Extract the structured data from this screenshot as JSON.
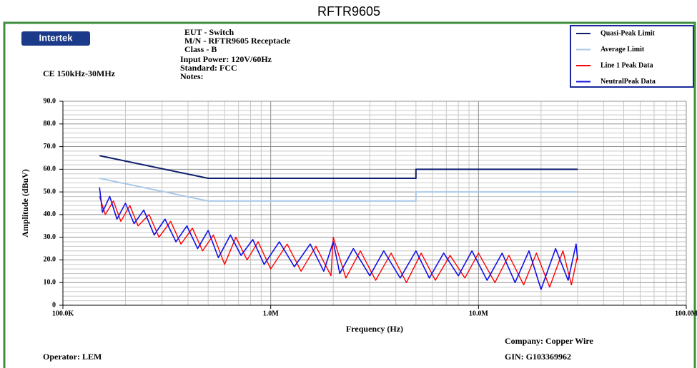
{
  "chart_data": {
    "type": "line",
    "title": "RFTR9605",
    "logo": "Intertek",
    "subtitle": "CE 150kHz-30MHz",
    "header_lines": [
      "EUT - Switch",
      "M/N - RFTR9605 Receptacle",
      "Class - B",
      "Input Power: 120V/60Hz",
      "Standard: FCC",
      "Notes:"
    ],
    "footer": {
      "company": "Company: Copper Wire",
      "gin": "GIN: G103369962",
      "operator": "Operator: LEM"
    },
    "xlabel": "Frequency (Hz)",
    "ylabel": "Amplitude (dBuV)",
    "xscale": "log",
    "grid": true,
    "legend": "top-right",
    "xlim": [
      100000,
      100000000
    ],
    "xticks": [
      {
        "value": 100000,
        "label": "100.0K"
      },
      {
        "value": 1000000,
        "label": "1.0M"
      },
      {
        "value": 10000000,
        "label": "10.0M"
      },
      {
        "value": 100000000,
        "label": "100.0M"
      }
    ],
    "ylim": [
      0,
      90
    ],
    "yticks": [
      0,
      {
        "value": 10,
        "label": "10.0"
      },
      {
        "value": 20,
        "label": "20.0"
      },
      {
        "value": 30,
        "label": "30.0"
      },
      {
        "value": 40,
        "label": "40.0"
      },
      {
        "value": 50,
        "label": "50.0"
      },
      {
        "value": 60,
        "label": "60.0"
      },
      {
        "value": 70,
        "label": "70.0"
      },
      {
        "value": 80,
        "label": "80.0"
      },
      {
        "value": 90,
        "label": "90.0"
      }
    ],
    "series": [
      {
        "name": "Line 1 Peak Data",
        "color": "#ff0000",
        "width": 1.4,
        "x": [
          150000,
          160000,
          175000,
          190000,
          210000,
          230000,
          260000,
          290000,
          330000,
          370000,
          420000,
          470000,
          530000,
          600000,
          680000,
          770000,
          870000,
          1000000,
          1200000,
          1400000,
          1650000,
          1950000,
          2000000,
          2300000,
          2700000,
          3200000,
          3800000,
          4500000,
          5300000,
          6200000,
          7300000,
          8600000,
          10000000,
          12000000,
          14000000,
          16500000,
          19000000,
          22000000,
          25500000,
          28000000,
          30000000
        ],
        "values": [
          48,
          40,
          46,
          37,
          44,
          35,
          40,
          30,
          37,
          27,
          34,
          24,
          31,
          18,
          30,
          20,
          28,
          16,
          27,
          15,
          26,
          13,
          30,
          12,
          24,
          11,
          23,
          10,
          23,
          11,
          22,
          12,
          23,
          10,
          22,
          9,
          23,
          8,
          24,
          9,
          22
        ]
      },
      {
        "name": "NeutralPeak Data",
        "color": "#1010e8",
        "width": 1.6,
        "x": [
          150000,
          155000,
          168000,
          182000,
          200000,
          220000,
          245000,
          275000,
          310000,
          350000,
          395000,
          445000,
          500000,
          560000,
          640000,
          720000,
          820000,
          930000,
          1100000,
          1300000,
          1550000,
          1800000,
          2000000,
          2150000,
          2500000,
          3000000,
          3500000,
          4200000,
          5000000,
          5800000,
          6800000,
          8000000,
          9300000,
          11000000,
          13000000,
          15000000,
          17500000,
          20000000,
          23500000,
          27000000,
          29500000,
          30000000
        ],
        "values": [
          52,
          41,
          48,
          38,
          45,
          36,
          42,
          31,
          38,
          28,
          35,
          25,
          33,
          21,
          31,
          22,
          29,
          18,
          28,
          17,
          27,
          15,
          28,
          14,
          25,
          13,
          24,
          12,
          24,
          12,
          23,
          13,
          24,
          11,
          23,
          10,
          24,
          7,
          25,
          11,
          27,
          20
        ]
      },
      {
        "name": "Quasi-Peak Limit",
        "color": "#0d1f6e",
        "width": 2,
        "x": [
          150000,
          500000,
          5000000,
          5000000,
          30000000
        ],
        "values": [
          66,
          56,
          56,
          60,
          60
        ]
      },
      {
        "name": "Average Limit",
        "color": "#a9c9ea",
        "width": 2,
        "x": [
          150000,
          500000,
          5000000,
          5000000,
          30000000
        ],
        "values": [
          56,
          46,
          46,
          50,
          50
        ]
      }
    ]
  }
}
